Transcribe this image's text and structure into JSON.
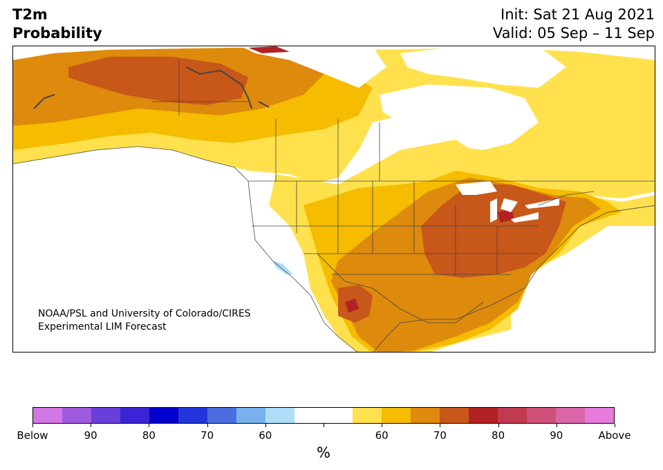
{
  "header": {
    "variable": "T2m",
    "kind": "Probability",
    "init": "Init: Sat 21 Aug 2021",
    "valid": "Valid: 05 Sep – 11 Sep"
  },
  "map": {
    "credit_line1": "NOAA/PSL and University of Colorado/CIRES",
    "credit_line2": "Experimental LIM Forecast",
    "colors": {
      "p55": "#FFE14D",
      "p60": "#F5BC00",
      "p65": "#DE8A0C",
      "p70": "#C8571A",
      "p75": "#B22222",
      "below60": "#AEDDF8",
      "water": "#FFFFFF",
      "borders": "#444444"
    }
  },
  "colorbar": {
    "unit": "%",
    "colors": [
      "#D178E6",
      "#A05AE0",
      "#6A3ED8",
      "#3A24D4",
      "#0000CC",
      "#2235DB",
      "#4A6EE0",
      "#78B1EE",
      "#AEDDF8",
      "#FFFFFF",
      "#FFFFFF",
      "#FFE14D",
      "#F5BC00",
      "#DE8A0C",
      "#C8571A",
      "#B22222",
      "#C23A4E",
      "#CF5078",
      "#DA66A8",
      "#E87ADB"
    ],
    "labels": [
      "Below",
      "90",
      "80",
      "70",
      "60",
      "",
      "60",
      "70",
      "80",
      "90",
      "Above"
    ]
  }
}
